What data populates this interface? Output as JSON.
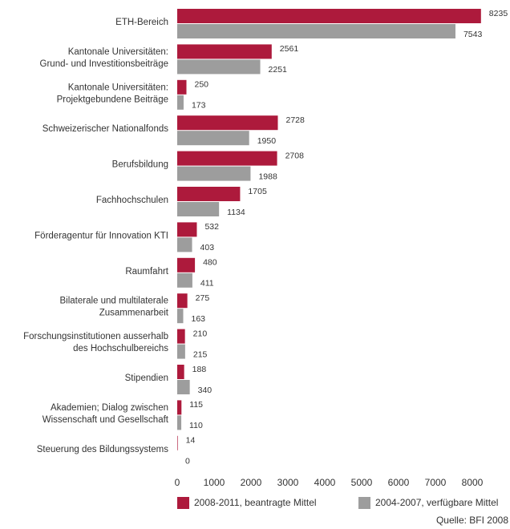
{
  "chart_data": {
    "type": "hbar",
    "categories": [
      "ETH-Bereich",
      "Kantonale Universitäten:\nGrund- und Investitionsbeiträge",
      "Kantonale Universitäten:\nProjektgebundene Beiträge",
      "Schweizerischer Nationalfonds",
      "Berufsbildung",
      "Fachhochschulen",
      "Förderagentur für Innovation KTI",
      "Raumfahrt",
      "Bilaterale und multilaterale\nZusammenarbeit",
      "Forschungsinstitutionen ausserhalb\ndes Hochschulbereichs",
      "Stipendien",
      "Akademien; Dialog zwischen\nWissenschaft und Gesellschaft",
      "Steuerung des Bildungssystems"
    ],
    "series": [
      {
        "name": "2008-2011, beantragte Mittel",
        "color": "#ad1a3c",
        "values": [
          8235,
          2561,
          250,
          2728,
          2708,
          1705,
          532,
          480,
          275,
          210,
          188,
          115,
          14
        ]
      },
      {
        "name": "2004-2007, verfügbare Mittel",
        "color": "#9d9d9d",
        "values": [
          7543,
          2251,
          173,
          1950,
          1988,
          1134,
          403,
          411,
          163,
          215,
          340,
          110,
          0
        ]
      }
    ],
    "xlim": [
      0,
      8500
    ],
    "xticks": [
      0,
      1000,
      2000,
      3000,
      4000,
      5000,
      6000,
      7000,
      8000
    ],
    "grid": false,
    "legend": "bottom",
    "source": "Quelle: BFI 2008"
  }
}
